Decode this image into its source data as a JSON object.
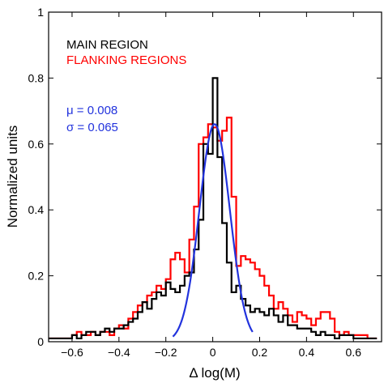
{
  "chart_data": {
    "type": "line",
    "xlabel": "Δ log(M)",
    "ylabel": "Normalized units",
    "xlim": [
      -0.7,
      0.72
    ],
    "ylim": [
      0,
      1
    ],
    "xticks": [
      -0.6,
      -0.4,
      -0.2,
      0,
      0.2,
      0.4,
      0.6
    ],
    "xtick_labels": [
      "−0.6",
      "−0.4",
      "−0.2",
      "0",
      "0.2",
      "0.4",
      "0.6"
    ],
    "yticks": [
      0,
      0.2,
      0.4,
      0.6,
      0.8,
      1
    ],
    "ytick_labels": [
      "0",
      "0.2",
      "0.4",
      "0.6",
      "0.8",
      "1"
    ],
    "legend": [
      {
        "label": "MAIN REGION",
        "color": "#000000"
      },
      {
        "label": "FLANKING REGIONS",
        "color": "#ff0000"
      }
    ],
    "annotations": {
      "mu": "μ = 0.008",
      "sigma": "σ = 0.065",
      "color": "#2233dd"
    },
    "grid": false,
    "series": [
      {
        "name": "FLANKING REGIONS",
        "style": "step",
        "color": "#ff0000",
        "edges": [
          -0.7,
          -0.62,
          -0.6,
          -0.58,
          -0.56,
          -0.54,
          -0.52,
          -0.5,
          -0.48,
          -0.46,
          -0.44,
          -0.42,
          -0.4,
          -0.38,
          -0.36,
          -0.34,
          -0.32,
          -0.3,
          -0.28,
          -0.26,
          -0.24,
          -0.22,
          -0.2,
          -0.18,
          -0.16,
          -0.14,
          -0.12,
          -0.1,
          -0.08,
          -0.06,
          -0.04,
          -0.02,
          0,
          0.02,
          0.04,
          0.06,
          0.08,
          0.1,
          0.12,
          0.14,
          0.16,
          0.18,
          0.2,
          0.22,
          0.24,
          0.26,
          0.28,
          0.3,
          0.32,
          0.34,
          0.36,
          0.38,
          0.4,
          0.42,
          0.44,
          0.46,
          0.48,
          0.5,
          0.52,
          0.54,
          0.56,
          0.58,
          0.6,
          0.62,
          0.64,
          0.66,
          0.7
        ],
        "values": [
          0.01,
          0.01,
          0.02,
          0.03,
          0.02,
          0.02,
          0.03,
          0.02,
          0.03,
          0.03,
          0.02,
          0.04,
          0.05,
          0.04,
          0.07,
          0.09,
          0.11,
          0.12,
          0.14,
          0.15,
          0.17,
          0.16,
          0.19,
          0.25,
          0.27,
          0.25,
          0.21,
          0.31,
          0.41,
          0.6,
          0.62,
          0.66,
          0.65,
          0.61,
          0.64,
          0.68,
          0.44,
          0.23,
          0.26,
          0.25,
          0.24,
          0.22,
          0.2,
          0.17,
          0.14,
          0.1,
          0.12,
          0.1,
          0.08,
          0.06,
          0.09,
          0.08,
          0.07,
          0.05,
          0.07,
          0.09,
          0.09,
          0.07,
          0.03,
          0.02,
          0.03,
          0.02,
          0.02,
          0.02,
          0.02,
          0.01
        ]
      },
      {
        "name": "MAIN REGION",
        "style": "step",
        "color": "#000000",
        "edges": [
          -0.7,
          -0.62,
          -0.6,
          -0.58,
          -0.56,
          -0.54,
          -0.52,
          -0.5,
          -0.48,
          -0.46,
          -0.44,
          -0.42,
          -0.4,
          -0.38,
          -0.36,
          -0.34,
          -0.32,
          -0.3,
          -0.28,
          -0.26,
          -0.24,
          -0.22,
          -0.2,
          -0.18,
          -0.16,
          -0.14,
          -0.12,
          -0.1,
          -0.08,
          -0.06,
          -0.04,
          -0.02,
          0,
          0.02,
          0.04,
          0.06,
          0.08,
          0.1,
          0.12,
          0.14,
          0.16,
          0.18,
          0.2,
          0.22,
          0.24,
          0.26,
          0.28,
          0.3,
          0.32,
          0.34,
          0.36,
          0.38,
          0.4,
          0.42,
          0.44,
          0.46,
          0.48,
          0.5,
          0.52,
          0.54,
          0.56,
          0.58,
          0.6,
          0.62,
          0.64,
          0.66,
          0.7
        ],
        "values": [
          0.01,
          0.01,
          0.02,
          0.01,
          0.02,
          0.03,
          0.03,
          0.02,
          0.03,
          0.04,
          0.03,
          0.04,
          0.04,
          0.05,
          0.06,
          0.07,
          0.09,
          0.12,
          0.1,
          0.13,
          0.15,
          0.14,
          0.18,
          0.16,
          0.15,
          0.17,
          0.2,
          0.21,
          0.28,
          0.37,
          0.6,
          0.57,
          0.8,
          0.56,
          0.36,
          0.24,
          0.15,
          0.17,
          0.13,
          0.11,
          0.09,
          0.1,
          0.09,
          0.08,
          0.1,
          0.08,
          0.06,
          0.08,
          0.05,
          0.05,
          0.04,
          0.04,
          0.04,
          0.03,
          0.02,
          0.03,
          0.02,
          0.02,
          0.01,
          0.02,
          0.02,
          0.02,
          0.01,
          0.01,
          0.01,
          0.01
        ]
      },
      {
        "name": "μ = 0.008, σ = 0.065",
        "style": "curve",
        "color": "#2233dd",
        "mu": 0.008,
        "sigma": 0.065,
        "peak": 0.66,
        "x_range": [
          -0.17,
          0.17
        ]
      }
    ]
  }
}
